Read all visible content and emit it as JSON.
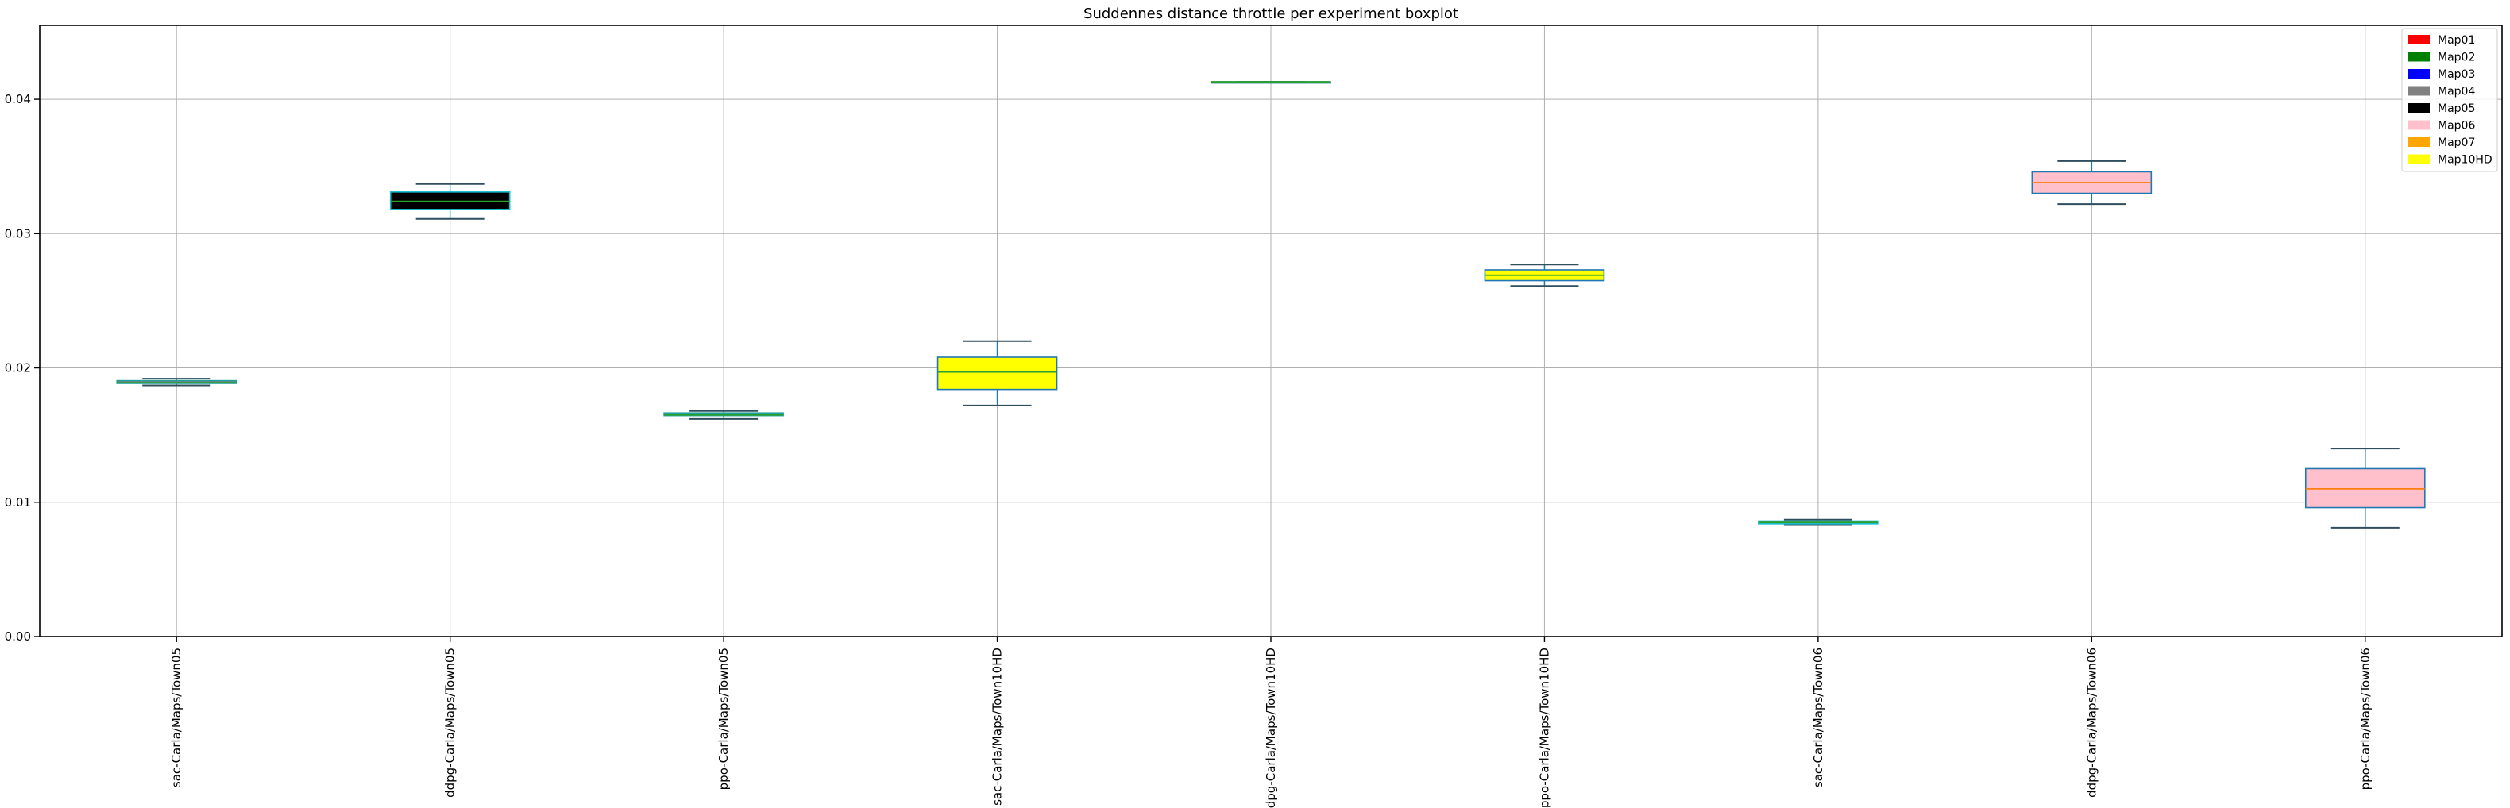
{
  "chart_data": {
    "type": "boxplot",
    "title": "Suddennes distance throttle per experiment boxplot",
    "xlabel": "",
    "ylabel": "",
    "ylim": [
      0,
      0.0455
    ],
    "yticks": [
      "0.00",
      "0.01",
      "0.02",
      "0.03",
      "0.04"
    ],
    "grid": true,
    "legend_position": "top-right",
    "legend": [
      {
        "label": "Map01",
        "color": "#ff0000"
      },
      {
        "label": "Map02",
        "color": "#008000"
      },
      {
        "label": "Map03",
        "color": "#0000ff"
      },
      {
        "label": "Map04",
        "color": "#808080"
      },
      {
        "label": "Map05",
        "color": "#000000"
      },
      {
        "label": "Map06",
        "color": "#ffc0cb"
      },
      {
        "label": "Map07",
        "color": "#ffa500"
      },
      {
        "label": "Map10HD",
        "color": "#ffff00"
      }
    ],
    "boxes": [
      {
        "label": "sac-Carla/Maps/Town05",
        "whislo": 0.0187,
        "q1": 0.01885,
        "median": 0.0189,
        "q3": 0.01905,
        "whishi": 0.0192,
        "fill": "#808080",
        "edge": "#1f9e9e",
        "median_color": "#2ca02c"
      },
      {
        "label": "ddpg-Carla/Maps/Town05",
        "whislo": 0.0311,
        "q1": 0.0318,
        "median": 0.0324,
        "q3": 0.0331,
        "whishi": 0.0337,
        "fill": "#000000",
        "edge": "#17becf",
        "median_color": "#2ca02c"
      },
      {
        "label": "ppo-Carla/Maps/Town05",
        "whislo": 0.0162,
        "q1": 0.01645,
        "median": 0.0165,
        "q3": 0.01665,
        "whishi": 0.0168,
        "fill": "#808080",
        "edge": "#1f9e9e",
        "median_color": "#2ca02c"
      },
      {
        "label": "sac-Carla/Maps/Town10HD",
        "whislo": 0.0172,
        "q1": 0.0184,
        "median": 0.0197,
        "q3": 0.0208,
        "whishi": 0.022,
        "fill": "#ffff00",
        "edge": "#1f77b4",
        "median_color": "#2ca02c"
      },
      {
        "label": "ddpg-Carla/Maps/Town10HD",
        "whislo": 0.0413,
        "q1": 0.0413,
        "median": 0.0413,
        "q3": 0.0413,
        "whishi": 0.0413,
        "fill": "#ffff00",
        "edge": "#1f77b4",
        "median_color": "#2ca02c"
      },
      {
        "label": "ppo-Carla/Maps/Town10HD",
        "whislo": 0.0261,
        "q1": 0.0265,
        "median": 0.0269,
        "q3": 0.0273,
        "whishi": 0.0277,
        "fill": "#ffff00",
        "edge": "#1f77b4",
        "median_color": "#2ca02c"
      },
      {
        "label": "sac-Carla/Maps/Town06",
        "whislo": 0.0083,
        "q1": 0.0084,
        "median": 0.0085,
        "q3": 0.0086,
        "whishi": 0.0087,
        "fill": "#808080",
        "edge": "#17becf",
        "median_color": "#2ca02c"
      },
      {
        "label": "ddpg-Carla/Maps/Town06",
        "whislo": 0.0322,
        "q1": 0.033,
        "median": 0.0338,
        "q3": 0.0346,
        "whishi": 0.0354,
        "fill": "#ffc0cb",
        "edge": "#1f77b4",
        "median_color": "#ff7f0e"
      },
      {
        "label": "ppo-Carla/Maps/Town06",
        "whislo": 0.0081,
        "q1": 0.0096,
        "median": 0.011,
        "q3": 0.0125,
        "whishi": 0.014,
        "fill": "#ffc0cb",
        "edge": "#1f77b4",
        "median_color": "#ff7f0e"
      }
    ]
  }
}
